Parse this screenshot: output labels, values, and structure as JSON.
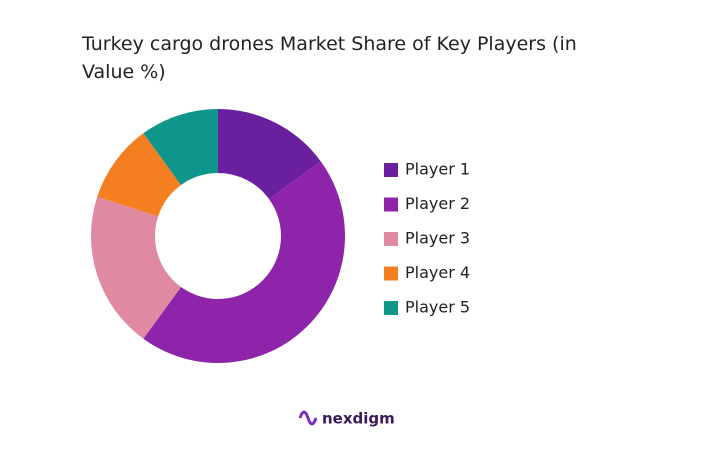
{
  "chart_data": {
    "type": "donut",
    "title": "Turkey cargo drones Market Share of Key Players (in Value %)",
    "categories": [
      "Player 1",
      "Player 2",
      "Player 3",
      "Player 4",
      "Player 5"
    ],
    "values": [
      15,
      45,
      20,
      10,
      10
    ],
    "colors": [
      "#6a1f9e",
      "#8e24aa",
      "#df8aa1",
      "#f47f21",
      "#0f968a"
    ],
    "legend": "right",
    "brand": "nexdigm"
  }
}
